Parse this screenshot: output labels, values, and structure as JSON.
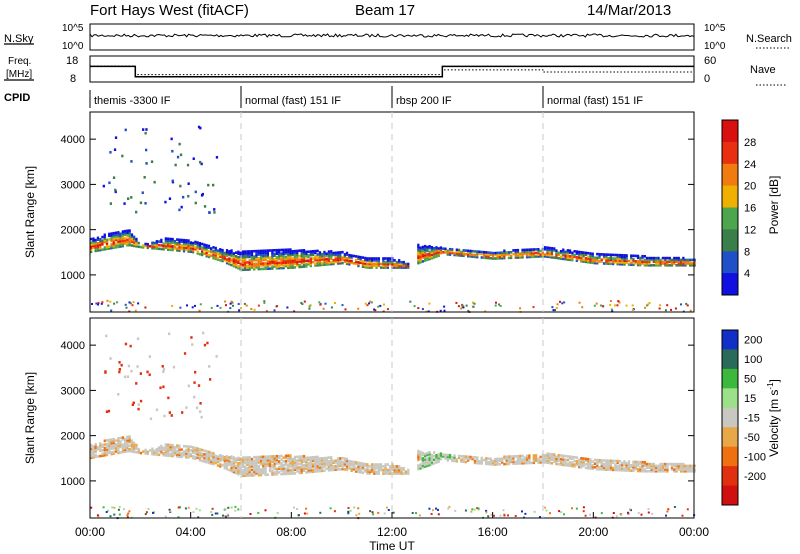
{
  "header": {
    "station": "Fort Hays West (fitACF)",
    "beam": "Beam 17",
    "date": "14/Mar/2013"
  },
  "colors": {
    "power": [
      "#1010e0",
      "#2050c8",
      "#3a7f4a",
      "#4da64d",
      "#f0b000",
      "#f07c10",
      "#e83010",
      "#d81010"
    ],
    "velocity": [
      "#1030c8",
      "#2a6a5a",
      "#3cb83c",
      "#9ce08a",
      "#c8c8c0",
      "#e8a84a",
      "#f07010",
      "#e03010",
      "#d01010"
    ],
    "velocity_panel_main": "#c8c8c0",
    "background": "#ffffff"
  },
  "labels": {
    "nsky": "N.Sky",
    "nsearch": "N.Search",
    "freq": "Freq.",
    "freq_unit": "[MHz]",
    "nave": "Nave",
    "cpid": "CPID",
    "slant_range": "Slant Range [km]",
    "power_label": "Power [dB]",
    "velocity_label": "Velocity [m s",
    "velocity_exp": "-1",
    "velocity_close": "]",
    "time_axis": "Time UT"
  },
  "noise_axis": {
    "left_ticks": [
      "10^5",
      "10^0"
    ],
    "right_ticks": [
      "10^5",
      "10^0"
    ]
  },
  "freq_axis": {
    "left_ticks": [
      "18",
      "8"
    ],
    "right_ticks": [
      "60",
      "0"
    ]
  },
  "cpid_modes": [
    {
      "label": "themis -3300 IF",
      "start": 0,
      "end": 6
    },
    {
      "label": "normal (fast) 151 IF",
      "start": 6,
      "end": 12
    },
    {
      "label": "rbsp 200 IF",
      "start": 12,
      "end": 18
    },
    {
      "label": "normal (fast) 151 IF",
      "start": 18,
      "end": 24
    }
  ],
  "chart_data": {
    "type": "heatmap",
    "x_ticks": [
      "00:00",
      "04:00",
      "08:00",
      "12:00",
      "16:00",
      "20:00",
      "00:00"
    ],
    "xlim_hours": [
      0,
      24
    ],
    "y_ticks": [
      1000,
      2000,
      3000,
      4000
    ],
    "ylim_km": [
      180,
      4600
    ],
    "power_scale": {
      "ticks": [
        4,
        8,
        12,
        16,
        20,
        24,
        28
      ],
      "range": [
        0,
        30
      ]
    },
    "velocity_scale": {
      "ticks": [
        200,
        100,
        50,
        15,
        -15,
        -50,
        -100,
        -200
      ]
    },
    "frequency_mhz": [
      {
        "start": 0,
        "end": 1.8,
        "value": 14
      },
      {
        "start": 1.8,
        "end": 14,
        "value": 10
      },
      {
        "start": 14,
        "end": 24,
        "value": 14
      }
    ],
    "nave_trace": [
      {
        "start": 0,
        "end": 1.8,
        "value": 37
      },
      {
        "start": 1.8,
        "end": 14,
        "value": 17
      },
      {
        "start": 14,
        "end": 18,
        "value": 28
      },
      {
        "start": 18,
        "end": 24,
        "value": 23
      }
    ],
    "scatter_bands": [
      {
        "name": "main",
        "points": [
          [
            0,
            1500,
            1800
          ],
          [
            1,
            1600,
            1950
          ],
          [
            1.5,
            1650,
            2000
          ],
          [
            2,
            1600,
            1650
          ],
          [
            3,
            1550,
            1800
          ],
          [
            4,
            1500,
            1750
          ],
          [
            5.2,
            1300,
            1550
          ],
          [
            6,
            1100,
            1500
          ],
          [
            8,
            1150,
            1550
          ],
          [
            10,
            1250,
            1500
          ],
          [
            11,
            1150,
            1350
          ],
          [
            12,
            1150,
            1350
          ],
          [
            12.6,
            1150,
            1250
          ]
        ]
      },
      {
        "name": "rbsp",
        "points": [
          [
            13,
            1250,
            1650
          ],
          [
            14,
            1450,
            1600
          ],
          [
            16,
            1350,
            1500
          ],
          [
            18,
            1400,
            1600
          ],
          [
            20,
            1250,
            1450
          ],
          [
            22,
            1200,
            1400
          ],
          [
            24,
            1200,
            1350
          ]
        ]
      }
    ]
  }
}
